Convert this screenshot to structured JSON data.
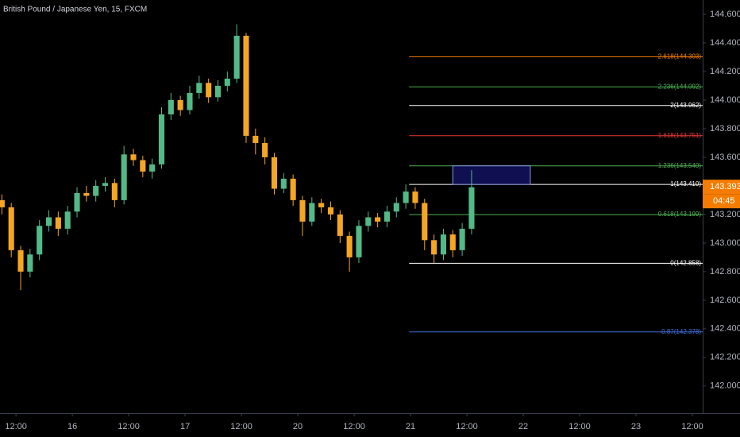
{
  "chart_data": {
    "type": "candlestick",
    "title": "British Pound / Japanese Yen, 15, FXCM",
    "up_color": "#53b987",
    "down_color": "#f5a623",
    "x": [
      -3,
      -1,
      1,
      3,
      5,
      7,
      9,
      11,
      13,
      15,
      17,
      19,
      21,
      23,
      25,
      27,
      29,
      31,
      33,
      35,
      37,
      39,
      41,
      43,
      45,
      47,
      49,
      51,
      53,
      55,
      57,
      59,
      61,
      63,
      65,
      67,
      69,
      71,
      73,
      75,
      77,
      79,
      81,
      83,
      85,
      87,
      89,
      91,
      93,
      95,
      97
    ],
    "open": [
      143.3,
      143.25,
      142.95,
      142.8,
      142.92,
      143.12,
      143.18,
      143.1,
      143.22,
      143.35,
      143.33,
      143.4,
      143.42,
      143.3,
      143.62,
      143.58,
      143.5,
      143.55,
      143.9,
      144.0,
      143.93,
      144.05,
      144.12,
      144.02,
      144.1,
      144.15,
      144.45,
      143.75,
      143.7,
      143.6,
      143.38,
      143.45,
      143.3,
      143.15,
      143.28,
      143.25,
      143.2,
      143.05,
      142.9,
      143.12,
      143.18,
      143.15,
      143.22,
      143.28,
      143.36,
      143.28,
      143.02,
      142.92,
      143.06,
      142.95,
      143.1
    ],
    "high": [
      143.34,
      143.28,
      142.98,
      142.96,
      143.16,
      143.23,
      143.22,
      143.26,
      143.39,
      143.4,
      143.44,
      143.46,
      143.45,
      143.68,
      143.66,
      143.61,
      143.59,
      143.95,
      144.05,
      144.03,
      144.1,
      144.17,
      144.15,
      144.14,
      144.2,
      144.53,
      144.47,
      143.8,
      143.74,
      143.63,
      143.49,
      143.48,
      143.33,
      143.32,
      143.31,
      143.29,
      143.23,
      143.08,
      143.16,
      143.22,
      143.21,
      143.26,
      143.32,
      143.41,
      143.39,
      143.31,
      143.06,
      143.1,
      143.09,
      143.14,
      143.51
    ],
    "low": [
      143.2,
      142.9,
      142.67,
      142.76,
      142.88,
      143.08,
      143.05,
      143.06,
      143.18,
      143.29,
      143.29,
      143.36,
      143.25,
      143.27,
      143.54,
      143.46,
      143.45,
      143.52,
      143.86,
      143.89,
      143.9,
      144.01,
      143.98,
      143.99,
      144.06,
      144.12,
      143.7,
      143.62,
      143.55,
      143.34,
      143.35,
      143.26,
      143.05,
      143.12,
      143.21,
      143.16,
      143.0,
      142.8,
      142.86,
      143.08,
      143.11,
      143.11,
      143.18,
      143.24,
      143.24,
      142.95,
      142.86,
      142.88,
      142.9,
      142.91,
      143.06
    ],
    "close": [
      143.25,
      142.95,
      142.8,
      142.92,
      143.12,
      143.18,
      143.1,
      143.22,
      143.35,
      143.33,
      143.4,
      143.42,
      143.3,
      143.62,
      143.58,
      143.5,
      143.55,
      143.9,
      144.0,
      143.93,
      144.05,
      144.12,
      144.02,
      144.1,
      144.15,
      144.45,
      143.75,
      143.7,
      143.6,
      143.38,
      143.45,
      143.3,
      143.15,
      143.28,
      143.25,
      143.2,
      143.05,
      142.9,
      143.12,
      143.18,
      143.15,
      143.22,
      143.28,
      143.36,
      143.28,
      143.02,
      142.92,
      143.06,
      142.95,
      143.1,
      143.39
    ],
    "xlim": [
      -3.4,
      146.2
    ],
    "ylim": [
      141.81,
      144.7
    ],
    "xticks": [
      {
        "value": 0,
        "label": "12:00"
      },
      {
        "value": 12,
        "label": "16"
      },
      {
        "value": 24,
        "label": "12:00"
      },
      {
        "value": 36,
        "label": "17"
      },
      {
        "value": 48,
        "label": "12:00"
      },
      {
        "value": 60,
        "label": "20"
      },
      {
        "value": 72,
        "label": "12:00"
      },
      {
        "value": 84,
        "label": "21"
      },
      {
        "value": 96,
        "label": "12:00"
      },
      {
        "value": 108,
        "label": "22"
      },
      {
        "value": 120,
        "label": "12:00"
      },
      {
        "value": 132,
        "label": "23"
      },
      {
        "value": 144,
        "label": "12:00"
      }
    ],
    "yticks": [
      {
        "value": 142.0,
        "label": "142.000"
      },
      {
        "value": 142.2,
        "label": "142.200"
      },
      {
        "value": 142.4,
        "label": "142.400"
      },
      {
        "value": 142.6,
        "label": "142.600"
      },
      {
        "value": 142.8,
        "label": "142.800"
      },
      {
        "value": 143.0,
        "label": "143.000"
      },
      {
        "value": 143.2,
        "label": "143.200"
      },
      {
        "value": 143.4,
        "label": "143.400"
      },
      {
        "value": 143.6,
        "label": "143.600"
      },
      {
        "value": 143.8,
        "label": "143.800"
      },
      {
        "value": 144.0,
        "label": "144.000"
      },
      {
        "value": 144.2,
        "label": "144.200"
      },
      {
        "value": 144.4,
        "label": "144.400"
      },
      {
        "value": 144.6,
        "label": "144.600"
      }
    ],
    "fib_x_start": 83.7,
    "fib_levels": [
      {
        "label": "2.618(144.303)",
        "value": 144.303,
        "color": "#f57c00"
      },
      {
        "label": "2.236(144.092)",
        "value": 144.092,
        "color": "#4caf50"
      },
      {
        "label": "2(143.962)",
        "value": 143.962,
        "color": "#ffffff"
      },
      {
        "label": "1.618(143.751)",
        "value": 143.751,
        "color": "#e53935"
      },
      {
        "label": "1.236(143.540)",
        "value": 143.54,
        "color": "#4caf50"
      },
      {
        "label": "1(143.410)",
        "value": 143.41,
        "color": "#ffffff"
      },
      {
        "label": "0.618(143.199)",
        "value": 143.199,
        "color": "#4caf50"
      },
      {
        "label": "0(142.858)",
        "value": 142.858,
        "color": "#ffffff"
      },
      {
        "label": "-0.87(142.378)",
        "value": 142.378,
        "color": "#3f6fd8"
      }
    ],
    "box": {
      "x": [
        93,
        109.5
      ],
      "y": [
        143.41,
        143.54
      ]
    },
    "last_price": {
      "value": 143.393,
      "label": "143.393",
      "countdown": "04:45"
    }
  }
}
